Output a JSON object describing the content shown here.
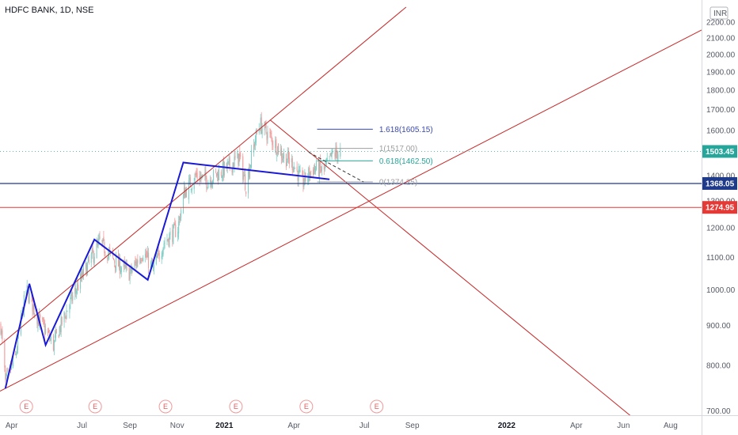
{
  "chart_data": {
    "type": "candlestick",
    "title": "HDFC BANK, 1D, NSE",
    "currency": "INR",
    "y_scale": "log",
    "ylim": [
      680,
      2300
    ],
    "xlim": [
      "2020-03-17",
      "2022-09-10"
    ],
    "grid": false,
    "y_ticks": [
      "700.00",
      "800.00",
      "900.00",
      "1000.00",
      "1100.00",
      "1200.00",
      "1300.00",
      "1400.00",
      "1500.00",
      "1600.00",
      "1700.00",
      "1800.00",
      "1900.00",
      "2000.00",
      "2100.00",
      "2200.00"
    ],
    "x_ticks": [
      {
        "label": "Apr",
        "date": "2020-04-01",
        "bold": false
      },
      {
        "label": "Jul",
        "date": "2020-07-01",
        "bold": false
      },
      {
        "label": "Sep",
        "date": "2020-09-01",
        "bold": false
      },
      {
        "label": "Nov",
        "date": "2020-11-01",
        "bold": false
      },
      {
        "label": "2021",
        "date": "2021-01-01",
        "bold": true
      },
      {
        "label": "Apr",
        "date": "2021-04-01",
        "bold": false
      },
      {
        "label": "Jul",
        "date": "2021-07-01",
        "bold": false
      },
      {
        "label": "Sep",
        "date": "2021-09-01",
        "bold": false
      },
      {
        "label": "2022",
        "date": "2022-01-01",
        "bold": true
      },
      {
        "label": "Apr",
        "date": "2022-04-01",
        "bold": false
      },
      {
        "label": "Jun",
        "date": "2022-06-01",
        "bold": false
      },
      {
        "label": "Aug",
        "date": "2022-08-01",
        "bold": false
      }
    ],
    "price_path": [
      [
        "2020-03-18",
        900
      ],
      [
        "2020-03-24",
        760
      ],
      [
        "2020-04-06",
        820
      ],
      [
        "2020-04-20",
        1000
      ],
      [
        "2020-05-05",
        920
      ],
      [
        "2020-05-25",
        850
      ],
      [
        "2020-06-15",
        960
      ],
      [
        "2020-07-24",
        1150
      ],
      [
        "2020-08-15",
        1080
      ],
      [
        "2020-09-01",
        1050
      ],
      [
        "2020-09-18",
        1120
      ],
      [
        "2020-10-01",
        1060
      ],
      [
        "2020-10-15",
        1150
      ],
      [
        "2020-11-02",
        1200
      ],
      [
        "2020-11-10",
        1330
      ],
      [
        "2020-11-25",
        1400
      ],
      [
        "2020-12-10",
        1380
      ],
      [
        "2021-01-08",
        1440
      ],
      [
        "2021-01-20",
        1480
      ],
      [
        "2021-01-29",
        1360
      ],
      [
        "2021-02-10",
        1560
      ],
      [
        "2021-02-16",
        1630
      ],
      [
        "2021-03-05",
        1550
      ],
      [
        "2021-03-19",
        1480
      ],
      [
        "2021-03-31",
        1450
      ],
      [
        "2021-04-12",
        1370
      ],
      [
        "2021-04-26",
        1430
      ],
      [
        "2021-05-10",
        1420
      ],
      [
        "2021-05-21",
        1490
      ],
      [
        "2021-06-01",
        1503.45
      ]
    ],
    "last_price": "1503.45",
    "horizontal_levels": [
      {
        "label": "1368.05",
        "value": 1368.05,
        "color": "#1e3a8a"
      },
      {
        "label": "1274.95",
        "value": 1274.95,
        "color": "#e53935"
      }
    ],
    "fibonacci": [
      {
        "label": "1.618(1605.15)",
        "value": 1605.15,
        "color": "#3949ab"
      },
      {
        "label": "1(1517.00)",
        "value": 1517.0,
        "color": "#9e9e9e"
      },
      {
        "label": "0.618(1462.50)",
        "value": 1462.5,
        "color": "#26a69a"
      },
      {
        "label": "0(1374.25)",
        "value": 1374.25,
        "color": "#9e9e9e"
      }
    ],
    "trend_lines": [
      {
        "name": "channel-upper",
        "color": "#c62828",
        "points": [
          [
            "2020-03-17",
            850
          ],
          [
            "2021-08-24",
            2300
          ]
        ]
      },
      {
        "name": "channel-lower",
        "color": "#c62828",
        "points": [
          [
            "2020-03-17",
            742
          ],
          [
            "2022-09-10",
            2150
          ]
        ]
      },
      {
        "name": "descending-line",
        "color": "#c62828",
        "points": [
          [
            "2021-03-01",
            1650
          ],
          [
            "2022-06-18",
            680
          ]
        ]
      },
      {
        "name": "support-line",
        "color": "#c62828",
        "points": [
          [
            "2020-03-17",
            1380
          ],
          [
            "2022-09-10",
            1380
          ]
        ]
      }
    ],
    "pattern_lines": [
      {
        "name": "wave-pattern",
        "color": "#1a1ad6",
        "points": [
          [
            "2020-03-24",
            748
          ],
          [
            "2020-04-24",
            1018
          ],
          [
            "2020-05-15",
            850
          ],
          [
            "2020-07-17",
            1160
          ],
          [
            "2020-09-24",
            1030
          ],
          [
            "2020-11-09",
            1455
          ],
          [
            "2021-05-17",
            1385
          ]
        ]
      }
    ],
    "dashed_projection": {
      "color": "#333333",
      "points": [
        [
          "2021-04-20",
          1500
        ],
        [
          "2021-06-30",
          1374
        ]
      ]
    },
    "events": [
      {
        "label": "E",
        "date": "2020-04-20"
      },
      {
        "label": "E",
        "date": "2020-07-18"
      },
      {
        "label": "E",
        "date": "2020-10-17"
      },
      {
        "label": "E",
        "date": "2021-01-16"
      },
      {
        "label": "E",
        "date": "2021-04-17"
      },
      {
        "label": "E",
        "date": "2021-07-17"
      }
    ]
  }
}
